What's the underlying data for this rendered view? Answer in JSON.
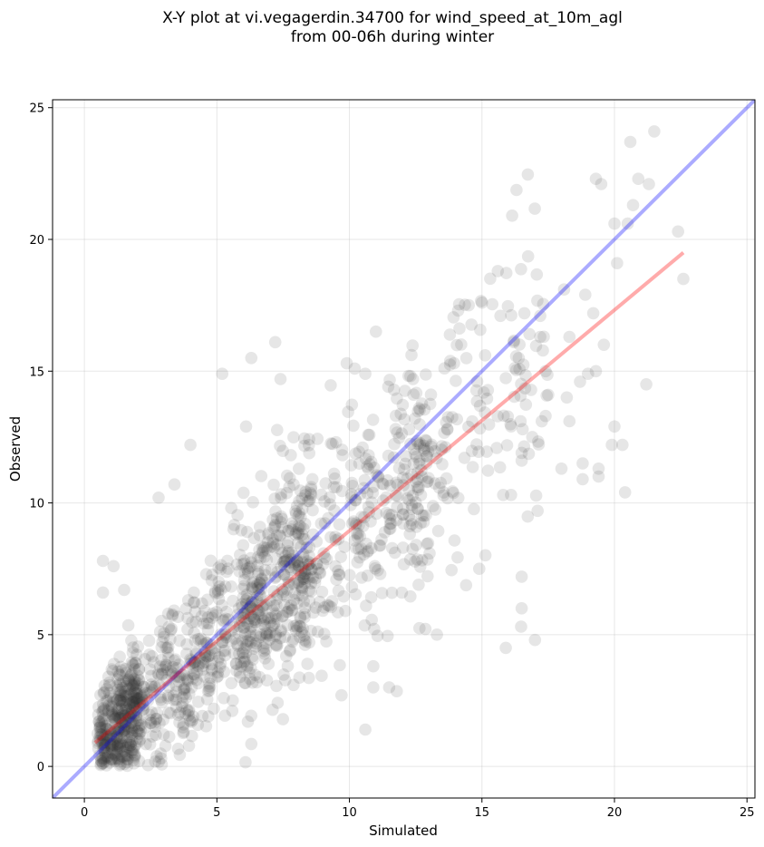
{
  "chart_data": {
    "type": "scatter",
    "title_line1": "X-Y plot at vi.vegagerdin.34700 for wind_speed_at_10m_agl",
    "title_line2": "from 00-06h during winter",
    "xlabel": "Simulated",
    "ylabel": "Observed",
    "xlim": [
      -1.2,
      25.3
    ],
    "ylim": [
      -1.2,
      25.3
    ],
    "xticks": [
      0,
      5,
      10,
      15,
      20,
      25
    ],
    "yticks": [
      0,
      5,
      10,
      15,
      20,
      25
    ],
    "grid": true,
    "point_color": "#333333",
    "point_opacity": 0.12,
    "identity_line": {
      "x": [
        -1.2,
        25.3
      ],
      "y": [
        -1.2,
        25.3
      ],
      "color": "#0000ff",
      "opacity": 0.33
    },
    "fit_line": {
      "x": [
        0.4,
        22.6
      ],
      "y": [
        0.9,
        19.5
      ],
      "color": "#ff0000",
      "opacity": 0.33
    },
    "outliers": [
      [
        20.6,
        23.7
      ],
      [
        21.5,
        24.1
      ],
      [
        20.9,
        22.3
      ],
      [
        21.3,
        22.1
      ],
      [
        19.3,
        22.3
      ],
      [
        19.5,
        22.1
      ],
      [
        20.7,
        21.3
      ],
      [
        20.5,
        20.6
      ],
      [
        20.0,
        20.6
      ],
      [
        22.4,
        20.3
      ],
      [
        20.1,
        19.1
      ],
      [
        22.6,
        18.5
      ],
      [
        15.6,
        18.8
      ],
      [
        18.1,
        18.1
      ],
      [
        18.9,
        17.9
      ],
      [
        19.2,
        17.2
      ],
      [
        19.6,
        16.0
      ],
      [
        18.3,
        16.3
      ],
      [
        21.2,
        14.5
      ],
      [
        19.3,
        15.0
      ],
      [
        19.0,
        14.9
      ],
      [
        18.7,
        14.6
      ],
      [
        18.2,
        14.0
      ],
      [
        18.3,
        13.1
      ],
      [
        20.0,
        12.9
      ],
      [
        19.9,
        12.2
      ],
      [
        20.3,
        12.2
      ],
      [
        18.0,
        11.3
      ],
      [
        18.8,
        11.5
      ],
      [
        19.4,
        11.3
      ],
      [
        19.4,
        11.0
      ],
      [
        18.8,
        10.9
      ],
      [
        20.4,
        10.4
      ],
      [
        15.8,
        10.3
      ],
      [
        16.1,
        10.3
      ],
      [
        17.1,
        9.7
      ],
      [
        16.5,
        7.2
      ],
      [
        16.5,
        6.0
      ],
      [
        15.9,
        4.5
      ],
      [
        17.0,
        4.8
      ],
      [
        14.9,
        7.5
      ],
      [
        13.3,
        5.0
      ],
      [
        10.6,
        1.4
      ],
      [
        10.9,
        3.0
      ],
      [
        11.5,
        3.0
      ],
      [
        10.9,
        3.8
      ],
      [
        9.7,
        2.7
      ],
      [
        7.2,
        16.1
      ],
      [
        6.3,
        15.5
      ],
      [
        5.2,
        14.9
      ],
      [
        7.4,
        14.7
      ],
      [
        6.1,
        12.9
      ],
      [
        4.0,
        12.2
      ],
      [
        2.8,
        10.2
      ],
      [
        3.4,
        10.7
      ],
      [
        0.7,
        7.8
      ],
      [
        1.1,
        7.6
      ],
      [
        0.7,
        6.6
      ],
      [
        1.5,
        6.7
      ],
      [
        11.0,
        16.5
      ],
      [
        9.9,
        15.3
      ],
      [
        10.2,
        15.1
      ],
      [
        10.6,
        14.9
      ],
      [
        12.4,
        14.7
      ],
      [
        14.1,
        17.3
      ],
      [
        14.5,
        17.5
      ],
      [
        15.0,
        17.6
      ],
      [
        15.7,
        17.1
      ],
      [
        16.6,
        17.2
      ],
      [
        17.2,
        17.1
      ],
      [
        16.2,
        16.1
      ],
      [
        17.2,
        16.3
      ],
      [
        17.4,
        15.0
      ],
      [
        17.5,
        14.1
      ],
      [
        17.4,
        13.3
      ],
      [
        16.9,
        12.5
      ],
      [
        16.5,
        11.9
      ]
    ]
  }
}
